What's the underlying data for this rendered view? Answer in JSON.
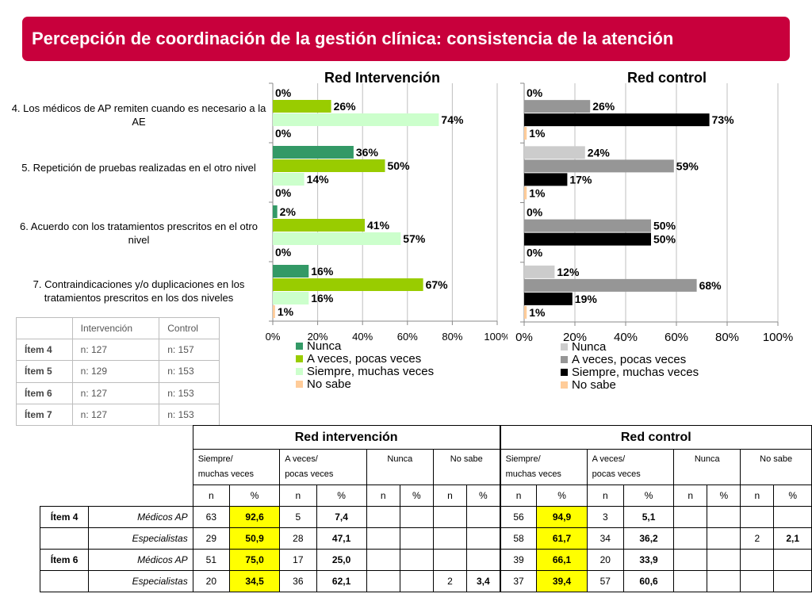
{
  "title": "Percepción de coordinación de la gestión clínica: consistencia de la atención",
  "question_labels": [
    "4. Los médicos de AP remiten cuando es necesario a la AE",
    "5. Repetición de pruebas realizadas en el otro nivel",
    "6. Acuerdo con los tratamientos prescritos en el otro nivel",
    "7. Contraindicaciones y/o duplicaciones en los tratamientos prescritos en los dos niveles"
  ],
  "chart_data": [
    {
      "type": "bar",
      "orientation": "horizontal",
      "title": "Red Intervención",
      "categories": [
        "4",
        "5",
        "6",
        "7"
      ],
      "xlim": [
        0,
        100
      ],
      "x_ticks": [
        "0%",
        "20%",
        "40%",
        "60%",
        "80%",
        "100%"
      ],
      "legend_position": "bottom",
      "grid": true,
      "series": [
        {
          "name": "Nunca",
          "color": "#339966",
          "values": [
            0,
            36,
            2,
            16
          ]
        },
        {
          "name": "A veces, pocas veces",
          "color": "#99cc00",
          "values": [
            26,
            50,
            41,
            67
          ]
        },
        {
          "name": "Siempre, muchas veces",
          "color": "#ccffcc",
          "values": [
            74,
            14,
            57,
            16
          ]
        },
        {
          "name": "No sabe",
          "color": "#ffcc99",
          "values": [
            0,
            0,
            0,
            1
          ]
        }
      ],
      "labels": [
        [
          "0%",
          "36%",
          "2%",
          "16%"
        ],
        [
          "26%",
          "50%",
          "41%",
          "67%"
        ],
        [
          "74%",
          "14%",
          "57%",
          "16%"
        ],
        [
          "0%",
          "0%",
          "0%",
          "1%"
        ]
      ]
    },
    {
      "type": "bar",
      "orientation": "horizontal",
      "title": "Red control",
      "categories": [
        "4",
        "5",
        "6",
        "7"
      ],
      "xlim": [
        0,
        100
      ],
      "x_ticks": [
        "0%",
        "20%",
        "40%",
        "60%",
        "80%",
        "100%"
      ],
      "legend_position": "bottom",
      "grid": true,
      "series": [
        {
          "name": "Nunca",
          "color": "#cccccc",
          "values": [
            0,
            24,
            0,
            12
          ]
        },
        {
          "name": "A veces, pocas veces",
          "color": "#969696",
          "values": [
            26,
            59,
            50,
            68
          ]
        },
        {
          "name": "Siempre, muchas veces",
          "color": "#000000",
          "values": [
            73,
            17,
            50,
            19
          ]
        },
        {
          "name": "No sabe",
          "color": "#ffcc99",
          "values": [
            1,
            1,
            0,
            1
          ]
        }
      ],
      "labels": [
        [
          "0%",
          "24%",
          "0%",
          "12%"
        ],
        [
          "26%",
          "59%",
          "50%",
          "68%"
        ],
        [
          "73%",
          "17%",
          "50%",
          "19%"
        ],
        [
          "1%",
          "1%",
          "0%",
          "1%"
        ]
      ]
    }
  ],
  "sample_table": {
    "headers": [
      "",
      "Intervención",
      "Control"
    ],
    "rows": [
      {
        "item": "Ítem 4",
        "intervencion": "n: 127",
        "control": "n: 157"
      },
      {
        "item": "Ítem 5",
        "intervencion": "n: 129",
        "control": "n: 153"
      },
      {
        "item": "Ítem 6",
        "intervencion": "n: 127",
        "control": "n: 153"
      },
      {
        "item": "Ítem 7",
        "intervencion": "n: 127",
        "control": "n: 153"
      }
    ]
  },
  "detail_table": {
    "groups": [
      "Red intervención",
      "Red control"
    ],
    "subheaders": [
      {
        "line1": "Siempre/",
        "line2": "muchas veces"
      },
      {
        "line1": "A veces/",
        "line2": "pocas veces"
      },
      {
        "line1": "Nunca",
        "line2": ""
      },
      {
        "line1": "No sabe",
        "line2": ""
      }
    ],
    "n_label": "n",
    "pct_label": "%",
    "rows": [
      {
        "item": "Ítem 4",
        "who": "Médicos AP",
        "cells": [
          "63",
          "92,6",
          "5",
          "7,4",
          "",
          "",
          "",
          "",
          "56",
          "94,9",
          "3",
          "5,1",
          "",
          "",
          "",
          ""
        ]
      },
      {
        "item": "",
        "who": "Especialistas",
        "cells": [
          "29",
          "50,9",
          "28",
          "47,1",
          "",
          "",
          "",
          "",
          "58",
          "61,7",
          "34",
          "36,2",
          "",
          "",
          "2",
          "2,1"
        ]
      },
      {
        "item": "Ítem 6",
        "who": "Médicos AP",
        "cells": [
          "51",
          "75,0",
          "17",
          "25,0",
          "",
          "",
          "",
          "",
          "39",
          "66,1",
          "20",
          "33,9",
          "",
          "",
          "",
          ""
        ]
      },
      {
        "item": "",
        "who": "Especialistas",
        "cells": [
          "20",
          "34,5",
          "36",
          "62,1",
          "",
          "",
          "2",
          "3,4",
          "37",
          "39,4",
          "57",
          "60,6",
          "",
          "",
          "",
          ""
        ]
      }
    ]
  }
}
